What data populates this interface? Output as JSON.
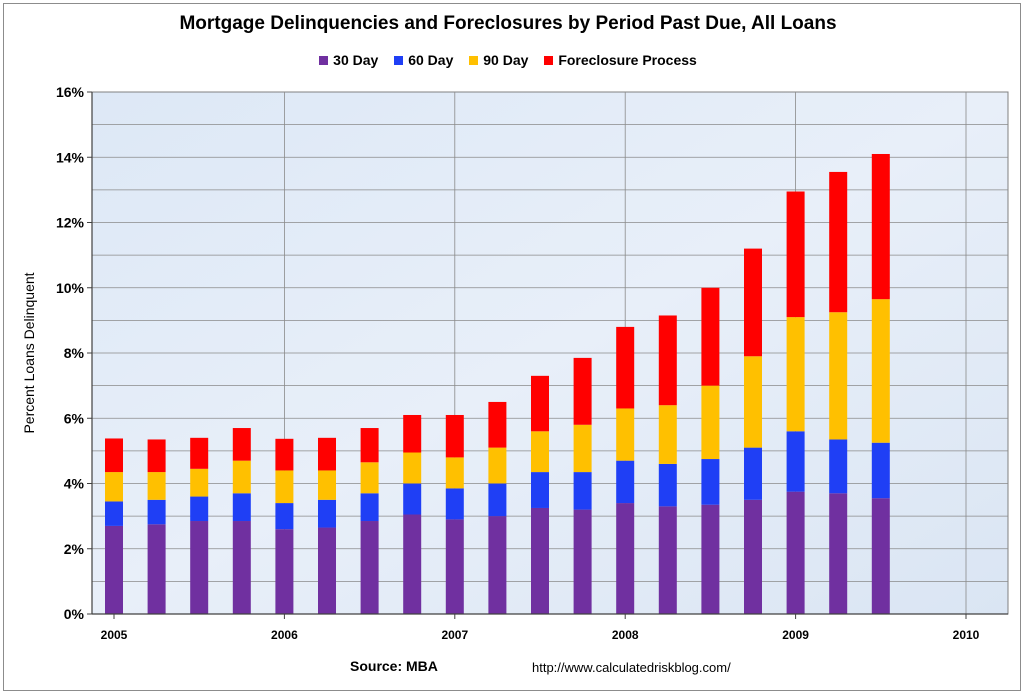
{
  "chart_data": {
    "type": "bar",
    "stacked": true,
    "title": "Mortgage Delinquencies and Foreclosures by Period Past Due, All Loans",
    "ylabel": "Percent Loans Delinquent",
    "xlabel": "",
    "ylim": [
      0,
      16
    ],
    "yticks": [
      "0%",
      "2%",
      "4%",
      "6%",
      "8%",
      "10%",
      "12%",
      "14%",
      "16%"
    ],
    "xlim": [
      2005,
      2010
    ],
    "xticks": [
      "2005",
      "2006",
      "2007",
      "2008",
      "2009",
      "2010"
    ],
    "grid": true,
    "legend_position": "top",
    "x": [
      2005.0,
      2005.25,
      2005.5,
      2005.75,
      2006.0,
      2006.25,
      2006.5,
      2006.75,
      2007.0,
      2007.25,
      2007.5,
      2007.75,
      2008.0,
      2008.25,
      2008.5,
      2008.75,
      2009.0,
      2009.25,
      2009.5
    ],
    "series": [
      {
        "name": "30 Day",
        "color": "#7030a0",
        "values": [
          2.7,
          2.75,
          2.85,
          2.85,
          2.6,
          2.65,
          2.85,
          3.05,
          2.9,
          3.0,
          3.25,
          3.2,
          3.4,
          3.3,
          3.35,
          3.5,
          3.75,
          3.7,
          3.55
        ]
      },
      {
        "name": "60 Day",
        "color": "#1f3ff5",
        "values": [
          0.75,
          0.75,
          0.75,
          0.85,
          0.8,
          0.85,
          0.85,
          0.95,
          0.95,
          1.0,
          1.1,
          1.15,
          1.3,
          1.3,
          1.4,
          1.6,
          1.85,
          1.65,
          1.7
        ]
      },
      {
        "name": "90 Day",
        "color": "#ffc000",
        "values": [
          0.9,
          0.85,
          0.85,
          1.0,
          1.0,
          0.9,
          0.95,
          0.95,
          0.95,
          1.1,
          1.25,
          1.45,
          1.6,
          1.8,
          2.25,
          2.8,
          3.5,
          3.9,
          4.4
        ]
      },
      {
        "name": "Foreclosure Process",
        "color": "#ff0000",
        "values": [
          1.03,
          1.0,
          0.95,
          1.0,
          0.97,
          1.0,
          1.05,
          1.15,
          1.3,
          1.4,
          1.7,
          2.05,
          2.5,
          2.75,
          3.0,
          3.3,
          3.85,
          4.3,
          4.45
        ]
      }
    ],
    "annotations": [
      "Source: MBA",
      "http://www.calculatedriskblog.com/"
    ]
  }
}
